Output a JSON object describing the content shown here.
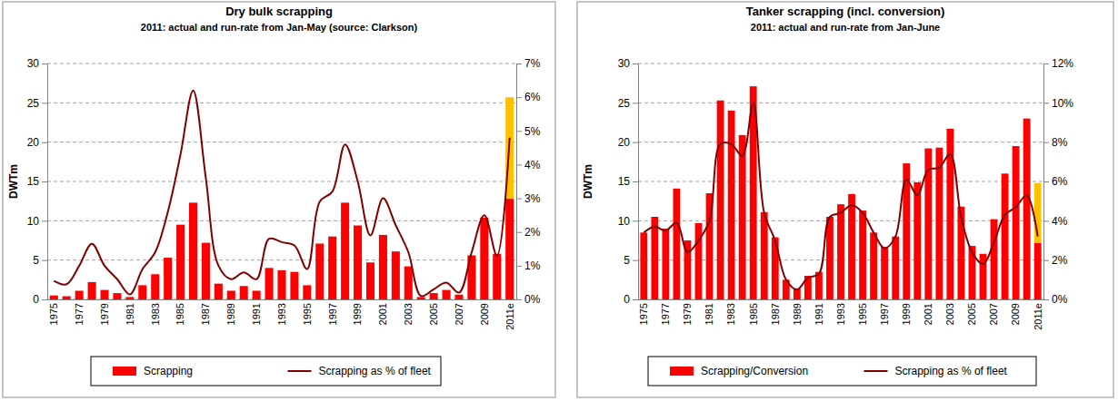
{
  "chart_data": [
    {
      "type": "bar",
      "title": "Dry bulk scrapping",
      "subtitle": "2011: actual and run-rate from Jan-May (source: Clarkson)",
      "y_label": "DWTm",
      "categories": [
        "1975",
        null,
        "1977",
        null,
        "1979",
        null,
        "1981",
        null,
        "1983",
        null,
        "1985",
        null,
        "1987",
        null,
        "1989",
        null,
        "1991",
        null,
        "1993",
        null,
        "1995",
        null,
        "1997",
        null,
        "1999",
        null,
        "2001",
        null,
        "2003",
        null,
        "2005",
        null,
        "2007",
        null,
        "2009",
        null,
        "2011e"
      ],
      "series": [
        {
          "name": "Scrapping",
          "color": "#ff0000",
          "values": [
            0.5,
            0.4,
            1.1,
            2.2,
            1.2,
            0.8,
            0.3,
            1.8,
            3.2,
            5.3,
            9.5,
            12.3,
            7.2,
            2,
            1.1,
            1.7,
            1.1,
            4,
            3.7,
            3.5,
            1.8,
            7.1,
            8,
            12.3,
            9.4,
            4.7,
            8.2,
            6.1,
            4.2,
            0.3,
            0.8,
            1.2,
            0.6,
            5.6,
            10.4,
            5.8,
            12.8
          ]
        },
        {
          "color": "#ffc000",
          "values": [
            null,
            null,
            null,
            null,
            null,
            null,
            null,
            null,
            null,
            null,
            null,
            null,
            null,
            null,
            null,
            null,
            null,
            null,
            null,
            null,
            null,
            null,
            null,
            null,
            null,
            null,
            null,
            null,
            null,
            null,
            null,
            null,
            null,
            null,
            null,
            null,
            12.9
          ]
        },
        {
          "name": "Scrapping as % of fleet",
          "type": "line",
          "axis": "y2",
          "color": "#800000",
          "values": [
            0.55,
            0.45,
            1.0,
            1.65,
            1.0,
            0.6,
            0.15,
            0.9,
            1.4,
            2.6,
            4.3,
            6.2,
            3.6,
            1.0,
            0.6,
            0.8,
            0.6,
            1.8,
            1.7,
            1.6,
            0.9,
            2.9,
            3.2,
            4.6,
            3.5,
            1.9,
            3.0,
            2.2,
            1.4,
            0.1,
            0.3,
            0.5,
            0.2,
            1.4,
            2.5,
            1.3,
            4.8
          ]
        }
      ],
      "ylim": [
        0,
        30
      ],
      "yticks": [
        0,
        5,
        10,
        15,
        20,
        25,
        30
      ],
      "y2lim": [
        0,
        7
      ],
      "y2ticks": [
        {
          "value": 0,
          "label": "0%"
        },
        {
          "value": 1,
          "label": "1%"
        },
        {
          "value": 2,
          "label": "2%"
        },
        {
          "value": 3,
          "label": "3%"
        },
        {
          "value": 4,
          "label": "4%"
        },
        {
          "value": 5,
          "label": "5%"
        },
        {
          "value": 6,
          "label": "6%"
        },
        {
          "value": 7,
          "label": "7%"
        }
      ],
      "stacked": true,
      "grid": true,
      "legend": "bottom"
    },
    {
      "type": "bar",
      "title": "Tanker scrapping (incl. conversion)",
      "subtitle": "2011: actual and run-rate from Jan-June",
      "y_label": "DWTm",
      "categories": [
        "1975",
        null,
        "1977",
        null,
        "1979",
        null,
        "1981",
        null,
        "1983",
        null,
        "1985",
        null,
        "1987",
        null,
        "1989",
        null,
        "1991",
        null,
        "1993",
        null,
        "1995",
        null,
        "1997",
        null,
        "1999",
        null,
        "2001",
        null,
        "2003",
        null,
        "2005",
        null,
        "2007",
        null,
        "2009",
        null,
        "2011e"
      ],
      "series": [
        {
          "name": "Scrapping/Conversion",
          "color": "#ff0000",
          "values": [
            8.5,
            10.5,
            9.0,
            14.1,
            7.5,
            9.7,
            13.5,
            25.3,
            24.0,
            20.9,
            27.1,
            11.1,
            7.9,
            2.5,
            1.4,
            3.0,
            3.5,
            10.5,
            12.1,
            13.4,
            11.3,
            8.5,
            6.7,
            8.0,
            17.3,
            14.9,
            19.2,
            19.3,
            21.7,
            11.8,
            6.8,
            5.8,
            10.2,
            16.0,
            19.5,
            23.0,
            7.2
          ]
        },
        {
          "color": "#ffc000",
          "values": [
            null,
            null,
            null,
            null,
            null,
            null,
            null,
            null,
            null,
            null,
            null,
            null,
            null,
            null,
            null,
            null,
            null,
            null,
            null,
            null,
            null,
            null,
            null,
            null,
            null,
            null,
            null,
            null,
            null,
            null,
            null,
            null,
            null,
            null,
            null,
            null,
            7.6
          ]
        },
        {
          "name": "Scrapping as % of fleet",
          "type": "line",
          "axis": "y2",
          "color": "#800000",
          "values": [
            3.4,
            3.7,
            3.5,
            3.9,
            2.4,
            3.0,
            4.0,
            7.9,
            7.9,
            7.3,
            10.0,
            4.4,
            3.0,
            1.0,
            0.5,
            1.1,
            1.3,
            4.2,
            4.4,
            4.8,
            4.4,
            3.4,
            2.6,
            3.2,
            6.1,
            5.3,
            6.6,
            6.7,
            7.4,
            4.2,
            2.4,
            1.8,
            2.9,
            4.3,
            4.7,
            5.3,
            3.2
          ]
        }
      ],
      "ylim": [
        0,
        30
      ],
      "yticks": [
        0,
        5,
        10,
        15,
        20,
        25,
        30
      ],
      "y2lim": [
        0,
        12
      ],
      "y2ticks": [
        {
          "value": 0,
          "label": "0%"
        },
        {
          "value": 2,
          "label": "2%"
        },
        {
          "value": 4,
          "label": "4%"
        },
        {
          "value": 6,
          "label": "6%"
        },
        {
          "value": 8,
          "label": "8%"
        },
        {
          "value": 10,
          "label": "10%"
        },
        {
          "value": 12,
          "label": "12%"
        }
      ],
      "stacked": true,
      "grid": true,
      "legend": "bottom"
    }
  ]
}
